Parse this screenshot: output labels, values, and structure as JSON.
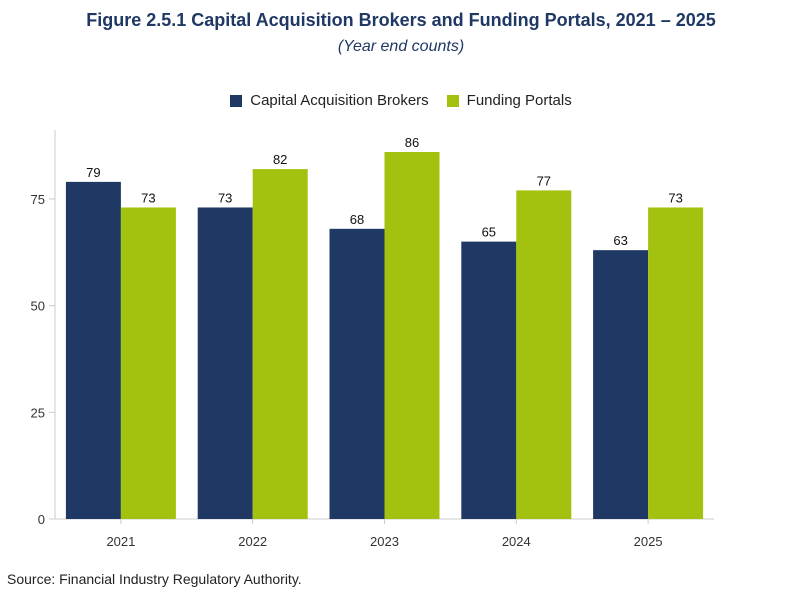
{
  "title": "Figure 2.5.1 Capital Acquisition Brokers and Funding Portals, 2021 – 2025",
  "subtitle": "(Year end counts)",
  "source": "Source: Financial Industry Regulatory Authority.",
  "colors": {
    "cab": "#203864",
    "fp": "#a2c20f",
    "axis": "#cccccc",
    "text": "#333333"
  },
  "chart_data": {
    "type": "bar",
    "categories": [
      "2021",
      "2022",
      "2023",
      "2024",
      "2025"
    ],
    "series": [
      {
        "name": "Capital Acquisition Brokers",
        "values": [
          79,
          73,
          68,
          65,
          63
        ]
      },
      {
        "name": "Funding Portals",
        "values": [
          73,
          82,
          86,
          77,
          73
        ]
      }
    ],
    "ylim": [
      0,
      86
    ],
    "yticks": [
      0,
      25,
      50,
      75
    ],
    "grid": false,
    "legend": "top-center"
  }
}
